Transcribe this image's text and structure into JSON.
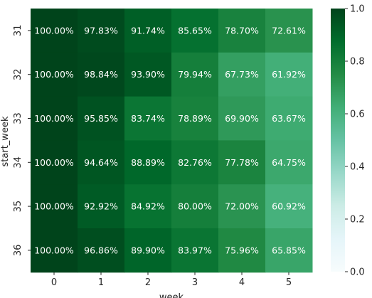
{
  "chart_data": {
    "type": "heatmap",
    "xlabel": "week",
    "ylabel": "start_week",
    "x_categories": [
      "0",
      "1",
      "2",
      "3",
      "4",
      "5"
    ],
    "y_categories": [
      "31",
      "32",
      "33",
      "34",
      "35",
      "36"
    ],
    "values": [
      [
        1.0,
        0.9783,
        0.9174,
        0.8565,
        0.787,
        0.7261
      ],
      [
        1.0,
        0.9884,
        0.939,
        0.7994,
        0.6773,
        0.6192
      ],
      [
        1.0,
        0.9585,
        0.8374,
        0.7889,
        0.699,
        0.6367
      ],
      [
        1.0,
        0.9464,
        0.8889,
        0.8276,
        0.7778,
        0.6475
      ],
      [
        1.0,
        0.9292,
        0.8492,
        0.8,
        0.72,
        0.6092
      ],
      [
        1.0,
        0.9686,
        0.899,
        0.8397,
        0.7596,
        0.6585
      ]
    ],
    "annotations": [
      [
        "100.00%",
        "97.83%",
        "91.74%",
        "85.65%",
        "78.70%",
        "72.61%"
      ],
      [
        "100.00%",
        "98.84%",
        "93.90%",
        "79.94%",
        "67.73%",
        "61.92%"
      ],
      [
        "100.00%",
        "95.85%",
        "83.74%",
        "78.89%",
        "69.90%",
        "63.67%"
      ],
      [
        "100.00%",
        "94.64%",
        "88.89%",
        "82.76%",
        "77.78%",
        "64.75%"
      ],
      [
        "100.00%",
        "92.92%",
        "84.92%",
        "80.00%",
        "72.00%",
        "60.92%"
      ],
      [
        "100.00%",
        "96.86%",
        "89.90%",
        "83.97%",
        "75.96%",
        "65.85%"
      ]
    ],
    "vmin": 0.0,
    "vmax": 1.0,
    "colormap": "BuGn",
    "colorbar_ticks": [
      "0.0",
      "0.2",
      "0.4",
      "0.6",
      "0.8",
      "1.0"
    ],
    "colorbar_values": [
      0.0,
      0.2,
      0.4,
      0.6,
      0.8,
      1.0
    ],
    "grid": false
  }
}
